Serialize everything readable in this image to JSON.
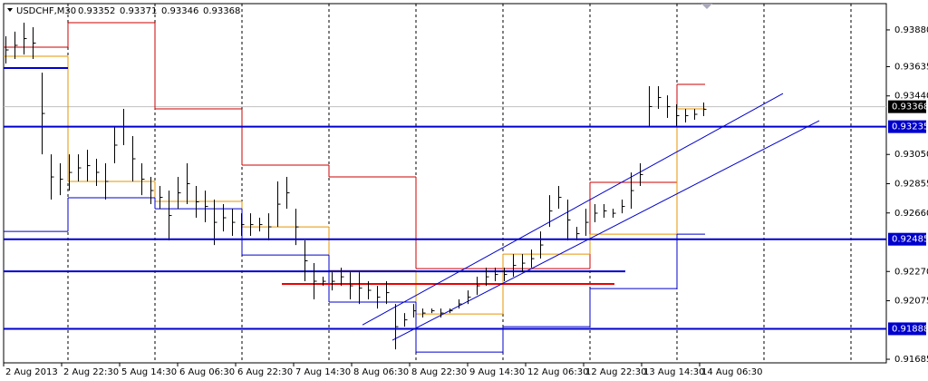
{
  "chart_data": {
    "type": "ohlc",
    "title": "USDCHF,M30",
    "last_bar": [
      0.93352,
      0.93371,
      0.93346,
      0.93368
    ],
    "ylim": [
      0.91661,
      0.94055
    ],
    "yticks": [
      {
        "value": 0.9388,
        "label": "0.93880"
      },
      0.93635,
      {
        "value": 0.9344,
        "label": "0.93440"
      },
      {
        "value": 0.9305,
        "label": "0.93050"
      },
      0.92855,
      {
        "value": 0.9266,
        "label": "0.92660"
      },
      {
        "value": 0.9227,
        "label": "0.92270"
      },
      0.92075,
      0.91685
    ],
    "categories": [
      "2 Aug 2013",
      "2 Aug 22:30",
      "5 Aug 14:30",
      "6 Aug 06:30",
      "6 Aug 22:30",
      "7 Aug 14:30",
      "8 Aug 06:30",
      "8 Aug 22:30",
      "9 Aug 14:30",
      "12 Aug 06:30",
      "12 Aug 22:30",
      "13 Aug 14:30",
      "14 Aug 06:30"
    ],
    "color": "#000000",
    "high": [
      0.93837,
      0.93868,
      0.93928,
      0.93898,
      0.93595,
      0.93051,
      0.92991,
      0.93051,
      0.93051,
      0.93081,
      0.93021,
      0.92991,
      0.93233,
      0.93354,
      0.93172,
      0.92991,
      0.929,
      0.9284,
      0.92809,
      0.929,
      0.92991,
      0.9284,
      0.92809,
      0.92749,
      0.92719,
      0.92688,
      0.92658,
      0.92658,
      0.92628,
      0.92658,
      0.9287,
      0.929,
      0.92688,
      0.92477,
      0.92326,
      0.92235,
      0.92265,
      0.92295,
      0.92265,
      0.92265,
      0.92205,
      0.92174,
      0.92205,
      0.92053,
      0.91993,
      0.92053,
      0.92023,
      0.92023,
      0.92023,
      0.92023,
      0.92084,
      0.92144,
      0.92235,
      0.92295,
      0.92295,
      0.92295,
      0.92386,
      0.92386,
      0.92416,
      0.92537,
      0.92779,
      0.9284,
      0.92749,
      0.92567,
      0.92688,
      0.92719,
      0.92719,
      0.92688,
      0.92749,
      0.9293,
      0.92991,
      0.93505,
      0.93505,
      0.93444,
      0.93384,
      0.93354,
      0.93354,
      0.93396
    ],
    "low": [
      0.93656,
      0.93686,
      0.93716,
      0.93686,
      0.93051,
      0.92749,
      0.92779,
      0.92809,
      0.9287,
      0.9287,
      0.9284,
      0.92749,
      0.92991,
      0.93112,
      0.9287,
      0.92779,
      0.92719,
      0.92688,
      0.92477,
      0.92688,
      0.92719,
      0.92628,
      0.92598,
      0.92446,
      0.92537,
      0.92507,
      0.92507,
      0.92507,
      0.92537,
      0.92477,
      0.92567,
      0.92688,
      0.92446,
      0.92205,
      0.92084,
      0.92174,
      0.92144,
      0.92174,
      0.92084,
      0.92053,
      0.92084,
      0.92023,
      0.92053,
      0.91751,
      0.91902,
      0.91963,
      0.91963,
      0.91993,
      0.91963,
      0.91993,
      0.92023,
      0.92053,
      0.92114,
      0.92174,
      0.92205,
      0.92205,
      0.92235,
      0.92265,
      0.92295,
      0.92356,
      0.92567,
      0.92688,
      0.92477,
      0.92477,
      0.92507,
      0.92598,
      0.92628,
      0.92628,
      0.92658,
      0.92688,
      0.9284,
      0.93233,
      0.93354,
      0.93293,
      0.93233,
      0.93263,
      0.93281,
      0.93305
    ],
    "day_levels": [
      {
        "color": "#cc0000",
        "values": [
          0.93765,
          0.93928,
          0.93354,
          0.92979,
          0.929,
          0.92289,
          0.92289,
          0.92864,
          0.93517
        ]
      },
      {
        "color": "#e69500",
        "values": [
          0.93704,
          0.9287,
          0.92737,
          0.92567,
          0.92277,
          0.91987,
          0.92386,
          0.92519,
          0.93354
        ]
      },
      {
        "color": "#0000cd",
        "values": [
          0.92537,
          0.92761,
          0.92688,
          0.9238,
          0.92066,
          0.91733,
          0.91902,
          0.92156,
          0.92519
        ]
      }
    ],
    "levels": [
      {
        "value": 0.93235,
        "color": "#0000cd"
      },
      {
        "value": 0.92485,
        "color": "#0000cd"
      },
      {
        "value": 0.91888,
        "color": "#0000cd"
      }
    ],
    "last_price": {
      "value": 0.93368,
      "color": "#c0c0c0"
    },
    "segments": [
      {
        "value": 0.93626,
        "color": "#0000cd"
      },
      {
        "value": 0.92271,
        "color": "#0000cd"
      },
      {
        "value": 0.92187,
        "color": "#ee0000"
      }
    ],
    "channel": [
      {
        "color": "#0000cd",
        "values": [
          0.91914,
          0.93456
        ]
      },
      {
        "color": "#0000cd",
        "values": [
          0.91812,
          0.93275
        ]
      }
    ]
  }
}
